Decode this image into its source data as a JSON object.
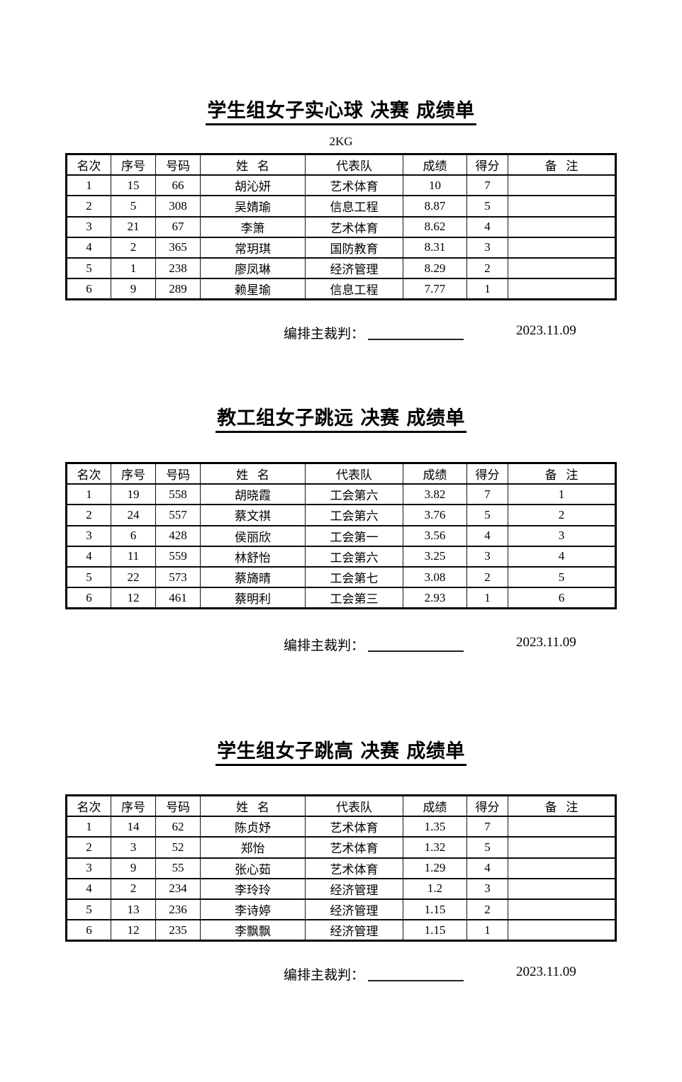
{
  "sections": [
    {
      "title": "学生组女子实心球 决赛 成绩单",
      "subtitle": "2KG",
      "headers": [
        "名次",
        "序号",
        "号码",
        "姓   名",
        "代表队",
        "成绩",
        "得分",
        "备   注"
      ],
      "rows": [
        [
          "1",
          "15",
          "66",
          "胡沁妍",
          "艺术体育",
          "10",
          "7",
          ""
        ],
        [
          "2",
          "5",
          "308",
          "吴婧瑜",
          "信息工程",
          "8.87",
          "5",
          ""
        ],
        [
          "3",
          "21",
          "67",
          "李箫",
          "艺术体育",
          "8.62",
          "4",
          ""
        ],
        [
          "4",
          "2",
          "365",
          "常玥琪",
          "国防教育",
          "8.31",
          "3",
          ""
        ],
        [
          "5",
          "1",
          "238",
          "廖凤琳",
          "经济管理",
          "8.29",
          "2",
          ""
        ],
        [
          "6",
          "9",
          "289",
          "赖星瑜",
          "信息工程",
          "7.77",
          "1",
          ""
        ]
      ],
      "footer_label": "编排主裁判：",
      "date": "2023.11.09"
    },
    {
      "title": "教工组女子跳远 决赛 成绩单",
      "subtitle": "",
      "headers": [
        "名次",
        "序号",
        "号码",
        "姓   名",
        "代表队",
        "成绩",
        "得分",
        "备   注"
      ],
      "rows": [
        [
          "1",
          "19",
          "558",
          "胡晓霞",
          "工会第六",
          "3.82",
          "7",
          "1"
        ],
        [
          "2",
          "24",
          "557",
          "蔡文祺",
          "工会第六",
          "3.76",
          "5",
          "2"
        ],
        [
          "3",
          "6",
          "428",
          "侯丽欣",
          "工会第一",
          "3.56",
          "4",
          "3"
        ],
        [
          "4",
          "11",
          "559",
          "林舒怡",
          "工会第六",
          "3.25",
          "3",
          "4"
        ],
        [
          "5",
          "22",
          "573",
          "蔡旖晴",
          "工会第七",
          "3.08",
          "2",
          "5"
        ],
        [
          "6",
          "12",
          "461",
          "蔡明利",
          "工会第三",
          "2.93",
          "1",
          "6"
        ]
      ],
      "footer_label": "编排主裁判：",
      "date": "2023.11.09"
    },
    {
      "title": "学生组女子跳高 决赛 成绩单",
      "subtitle": "",
      "headers": [
        "名次",
        "序号",
        "号码",
        "姓   名",
        "代表队",
        "成绩",
        "得分",
        "备   注"
      ],
      "rows": [
        [
          "1",
          "14",
          "62",
          "陈贞妤",
          "艺术体育",
          "1.35",
          "7",
          ""
        ],
        [
          "2",
          "3",
          "52",
          "郑怡",
          "艺术体育",
          "1.32",
          "5",
          ""
        ],
        [
          "3",
          "9",
          "55",
          "张心茹",
          "艺术体育",
          "1.29",
          "4",
          ""
        ],
        [
          "4",
          "2",
          "234",
          "李玲玲",
          "经济管理",
          "1.2",
          "3",
          ""
        ],
        [
          "5",
          "13",
          "236",
          "李诗婷",
          "经济管理",
          "1.15",
          "2",
          ""
        ],
        [
          "6",
          "12",
          "235",
          "李飘飘",
          "经济管理",
          "1.15",
          "1",
          ""
        ]
      ],
      "footer_label": "编排主裁判：",
      "date": "2023.11.09"
    }
  ]
}
